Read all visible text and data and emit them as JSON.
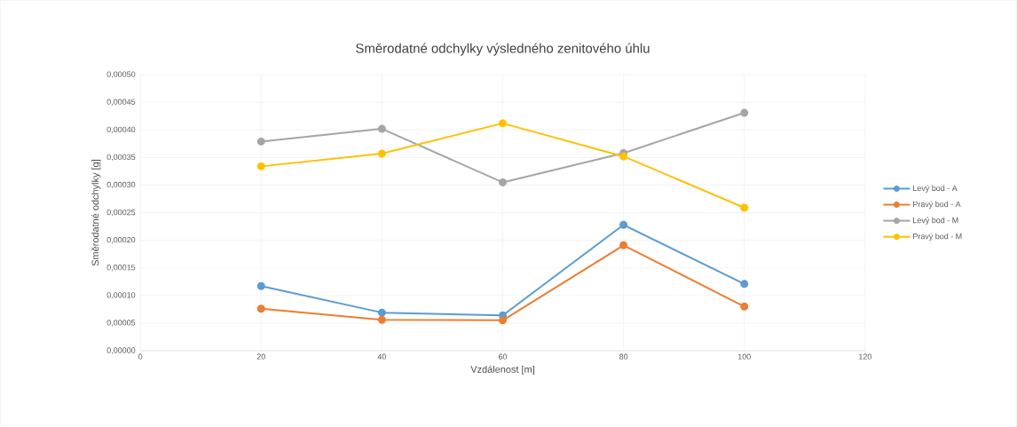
{
  "chart_data": {
    "type": "line",
    "title": "Směrodatné odchylky výsledného zenitového úhlu",
    "xlabel": "Vzdálenost [m]",
    "ylabel": "Směrodatné odchylky [g]",
    "x": [
      20,
      40,
      60,
      80,
      100
    ],
    "series": [
      {
        "name": "Levý bod - A",
        "color": "#5b9bd5",
        "values": [
          0.000117,
          6.9e-05,
          6.4e-05,
          0.000228,
          0.000121
        ]
      },
      {
        "name": "Pravý bod - A",
        "color": "#ed7d31",
        "values": [
          7.6e-05,
          5.6e-05,
          5.5e-05,
          0.000191,
          8e-05
        ]
      },
      {
        "name": "Levý bod - M",
        "color": "#a5a5a5",
        "values": [
          0.000379,
          0.000402,
          0.000305,
          0.000358,
          0.000431
        ]
      },
      {
        "name": "Pravý bod - M",
        "color": "#ffc000",
        "values": [
          0.000334,
          0.000357,
          0.000412,
          0.000352,
          0.000259
        ]
      }
    ],
    "xlim": [
      0,
      120
    ],
    "xticks": [
      0,
      20,
      40,
      60,
      80,
      100,
      120
    ],
    "ylim": [
      0,
      0.0005
    ],
    "yticks": [
      {
        "value": 0,
        "label": "0,00000"
      },
      {
        "value": 5e-05,
        "label": "0,00005"
      },
      {
        "value": 0.0001,
        "label": "0,00010"
      },
      {
        "value": 0.00015,
        "label": "0,00015"
      },
      {
        "value": 0.0002,
        "label": "0,00020"
      },
      {
        "value": 0.00025,
        "label": "0,00025"
      },
      {
        "value": 0.0003,
        "label": "0,00030"
      },
      {
        "value": 0.00035,
        "label": "0,00035"
      },
      {
        "value": 0.0004,
        "label": "0,00040"
      },
      {
        "value": 0.00045,
        "label": "0,00045"
      },
      {
        "value": 0.0005,
        "label": "0,00050"
      }
    ],
    "grid": true,
    "legend": "right",
    "marker": "circle",
    "line_style": "solid"
  }
}
